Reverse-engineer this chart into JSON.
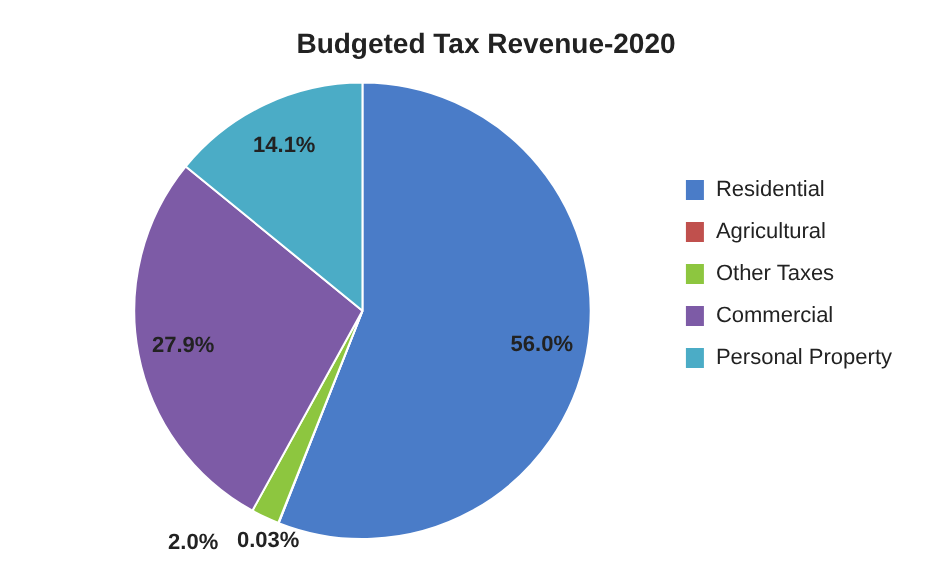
{
  "chart_data": {
    "type": "pie",
    "title": "Budgeted Tax Revenue-2020",
    "categories": [
      "Residential",
      "Agricultural",
      "Other Taxes",
      "Commercial",
      "Personal Property"
    ],
    "values": [
      56.0,
      0.03,
      2.0,
      27.9,
      14.1
    ],
    "value_labels": [
      "56.0%",
      "0.03%",
      "2.0%",
      "27.9%",
      "14.1%"
    ],
    "colors": [
      "#4a7cc8",
      "#c0504d",
      "#8dc63f",
      "#7d5ba6",
      "#4bacc6"
    ],
    "legend": "right"
  }
}
